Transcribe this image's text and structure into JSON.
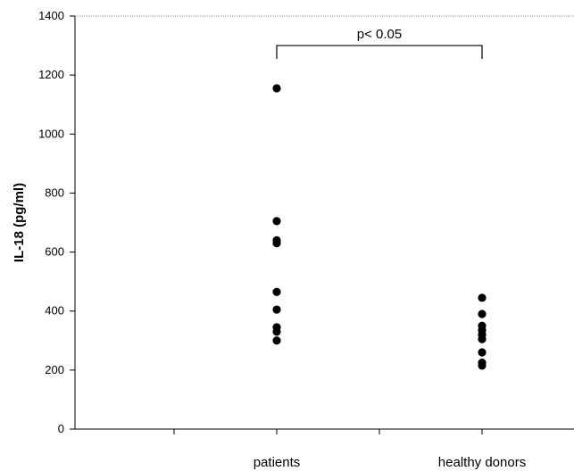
{
  "chart_data": {
    "type": "scatter",
    "title": "",
    "xlabel": "",
    "ylabel": "IL-18 (pg/ml)",
    "categories": [
      "patients",
      "healthy donors"
    ],
    "ylim": [
      0,
      1400
    ],
    "yticks": [
      0,
      200,
      400,
      600,
      800,
      1000,
      1200,
      1400
    ],
    "grid": false,
    "series": [
      {
        "category": "patients",
        "values": [
          1155,
          705,
          640,
          630,
          465,
          405,
          345,
          330,
          300
        ]
      },
      {
        "category": "healthy donors",
        "values": [
          445,
          390,
          350,
          335,
          320,
          305,
          260,
          225,
          215
        ]
      }
    ],
    "annotation": {
      "text": "p< 0.05",
      "between": [
        "patients",
        "healthy donors"
      ],
      "y": 1300
    },
    "colors": {
      "points": "#000000",
      "axes": "#000000"
    }
  }
}
